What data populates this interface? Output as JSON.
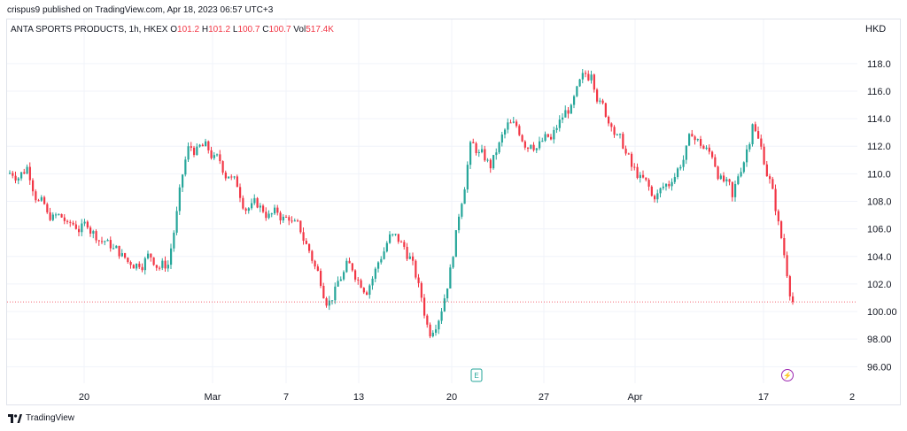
{
  "header": {
    "published": "crispus9 published on TradingView.com, Apr 18, 2023 06:57 UTC+3"
  },
  "legend": {
    "symbol": "ANTA SPORTS PRODUCTS, 1h, HKEX",
    "o_label": "O",
    "o_value": "101.2",
    "h_label": "H",
    "h_value": "101.2",
    "l_label": "L",
    "l_value": "100.7",
    "c_label": "C",
    "c_value": "100.7",
    "vol_label": "Vol",
    "vol_value": "517.4K"
  },
  "currency": "HKD",
  "brand": {
    "label": "TradingView"
  },
  "colors": {
    "up": "#26a69a",
    "down": "#f23645",
    "grid": "#f0f3fa",
    "last_price_line": "#f23645"
  },
  "markers": [
    {
      "name": "earnings-marker",
      "glyph": "E",
      "x_label_index": 4,
      "color": "#26a69a"
    },
    {
      "name": "dividend-marker",
      "glyph": "⚡",
      "color": "#9c27b0"
    }
  ],
  "chart_data": {
    "type": "candlestick",
    "y_axis": {
      "ylim": [
        94.8,
        121.2
      ],
      "ticks": [
        "96.00",
        "98.00",
        "100.00",
        "102.0",
        "104.0",
        "106.0",
        "108.0",
        "110.0",
        "112.0",
        "114.0",
        "116.0",
        "118.0"
      ],
      "tick_values": [
        96,
        98,
        100,
        102,
        104,
        106,
        108,
        110,
        112,
        114,
        116,
        118
      ]
    },
    "x_axis": {
      "ticks": [
        "20",
        "Mar",
        "7",
        "13",
        "20",
        "27",
        "Apr",
        "17",
        "2"
      ]
    },
    "last_price": 100.7,
    "session_closes": [
      110.5,
      107.2,
      106.5,
      106.1,
      105.2,
      103.6,
      104.2,
      103.4,
      112.0,
      111.7,
      109.8,
      107.5,
      107.1,
      106.6,
      104.4,
      100.8,
      103.5,
      101.9,
      105.6,
      104.0,
      98.2,
      103.2,
      112.3,
      110.4,
      113.7,
      112.1,
      112.5,
      115.0,
      117.2,
      113.4,
      110.5,
      108.4,
      109.4,
      112.7,
      111.2,
      108.3,
      113.6,
      108.9,
      100.7
    ]
  }
}
